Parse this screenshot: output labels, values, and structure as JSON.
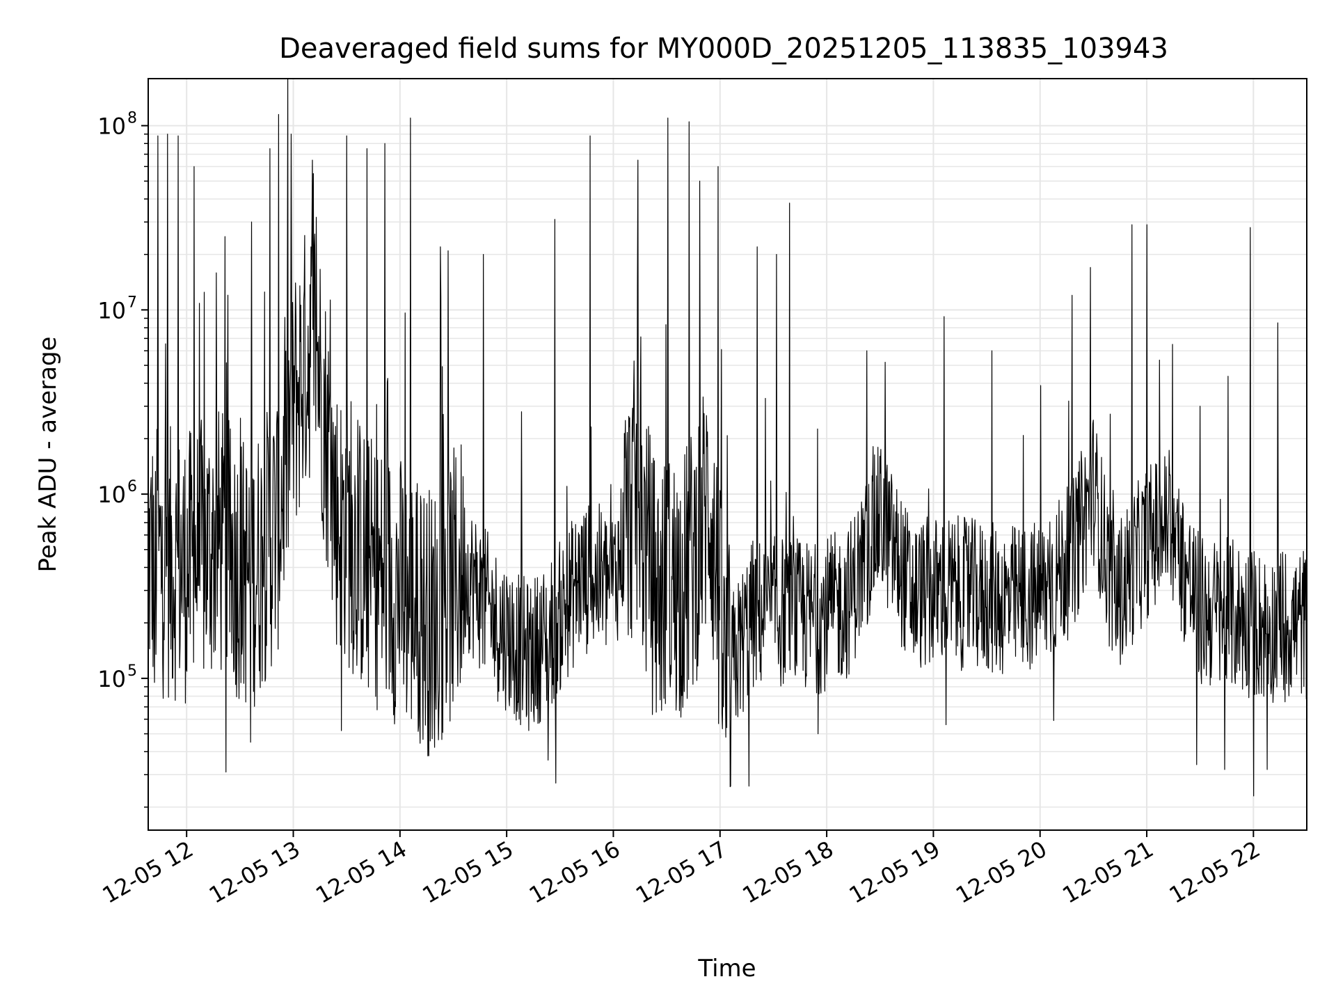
{
  "chart_data": {
    "type": "line",
    "title": "Deaveraged field sums for MY000D_20251205_113835_103943",
    "xlabel": "Time",
    "ylabel": "Peak ADU - average",
    "yscale": "log",
    "ylim": [
      15000,
      180000000
    ],
    "xlim_hours": [
      11.64,
      22.5
    ],
    "grid": "on (major and minor)",
    "line_color": "#000000",
    "grid_color": "#e6e6e6",
    "x_ticks": [
      {
        "hour": 12,
        "label": "12-05 12"
      },
      {
        "hour": 13,
        "label": "12-05 13"
      },
      {
        "hour": 14,
        "label": "12-05 14"
      },
      {
        "hour": 15,
        "label": "12-05 15"
      },
      {
        "hour": 16,
        "label": "12-05 16"
      },
      {
        "hour": 17,
        "label": "12-05 17"
      },
      {
        "hour": 18,
        "label": "12-05 18"
      },
      {
        "hour": 19,
        "label": "12-05 19"
      },
      {
        "hour": 20,
        "label": "12-05 20"
      },
      {
        "hour": 21,
        "label": "12-05 21"
      },
      {
        "hour": 22,
        "label": "12-05 22"
      }
    ],
    "y_ticks": [
      {
        "value": 100000,
        "base": "10",
        "exp": "5"
      },
      {
        "value": 1000000,
        "base": "10",
        "exp": "6"
      },
      {
        "value": 10000000,
        "base": "10",
        "exp": "7"
      },
      {
        "value": 100000000,
        "base": "10",
        "exp": "8"
      }
    ],
    "series": [
      {
        "envelope_hours": [
          11.64,
          12.0,
          12.3,
          12.6,
          12.85,
          13.0,
          13.2,
          13.4,
          13.7,
          14.0,
          14.3,
          14.6,
          14.9,
          15.2,
          15.4,
          15.7,
          16.0,
          16.2,
          16.4,
          16.7,
          16.9,
          17.05,
          17.3,
          17.6,
          17.9,
          18.2,
          18.5,
          18.8,
          19.1,
          19.4,
          19.7,
          20.0,
          20.3,
          20.5,
          20.7,
          21.0,
          21.2,
          21.5,
          21.8,
          22.1,
          22.5
        ],
        "envelope_median": [
          450000,
          400000,
          550000,
          350000,
          700000,
          3000000,
          8000000,
          800000,
          400000,
          300000,
          200000,
          400000,
          200000,
          130000,
          170000,
          350000,
          330000,
          1000000,
          280000,
          350000,
          1000000,
          90000,
          220000,
          230000,
          210000,
          260000,
          750000,
          280000,
          300000,
          280000,
          260000,
          280000,
          450000,
          1100000,
          260000,
          550000,
          700000,
          230000,
          220000,
          190000,
          200000
        ],
        "peaks": [
          {
            "hour": 11.73,
            "value": 88000000
          },
          {
            "hour": 11.82,
            "value": 90000000
          },
          {
            "hour": 11.92,
            "value": 88000000
          },
          {
            "hour": 12.07,
            "value": 60000000
          },
          {
            "hour": 12.36,
            "value": 25000000
          },
          {
            "hour": 12.61,
            "value": 30000000
          },
          {
            "hour": 12.78,
            "value": 75000000
          },
          {
            "hour": 12.86,
            "value": 115000000
          },
          {
            "hour": 12.98,
            "value": 90000000
          },
          {
            "hour": 13.18,
            "value": 65000000
          },
          {
            "hour": 13.5,
            "value": 88000000
          },
          {
            "hour": 13.69,
            "value": 75000000
          },
          {
            "hour": 13.86,
            "value": 80000000
          },
          {
            "hour": 14.1,
            "value": 110000000
          },
          {
            "hour": 14.38,
            "value": 22000000
          },
          {
            "hour": 14.78,
            "value": 20000000
          },
          {
            "hour": 15.14,
            "value": 2800000
          },
          {
            "hour": 15.45,
            "value": 31000000
          },
          {
            "hour": 15.78,
            "value": 88000000
          },
          {
            "hour": 16.23,
            "value": 65000000
          },
          {
            "hour": 16.51,
            "value": 110000000
          },
          {
            "hour": 16.71,
            "value": 105000000
          },
          {
            "hour": 16.98,
            "value": 60000000
          },
          {
            "hour": 17.35,
            "value": 22000000
          },
          {
            "hour": 17.65,
            "value": 38000000
          },
          {
            "hour": 17.53,
            "value": 20000000
          },
          {
            "hour": 18.55,
            "value": 5200000
          },
          {
            "hour": 19.1,
            "value": 9200000
          },
          {
            "hour": 19.55,
            "value": 6000000
          },
          {
            "hour": 20.3,
            "value": 12000000
          },
          {
            "hour": 20.47,
            "value": 17000000
          },
          {
            "hour": 20.86,
            "value": 29000000
          },
          {
            "hour": 21.0,
            "value": 29000000
          },
          {
            "hour": 21.24,
            "value": 6500000
          },
          {
            "hour": 21.5,
            "value": 3000000
          },
          {
            "hour": 21.97,
            "value": 28000000
          },
          {
            "hour": 22.23,
            "value": 8500000
          }
        ],
        "troughs": [
          {
            "hour": 11.7,
            "value": 95000
          },
          {
            "hour": 12.37,
            "value": 31000
          },
          {
            "hour": 12.6,
            "value": 45000
          },
          {
            "hour": 13.45,
            "value": 52000
          },
          {
            "hour": 14.3,
            "value": 47000
          },
          {
            "hour": 15.39,
            "value": 36000
          },
          {
            "hour": 15.46,
            "value": 27000
          },
          {
            "hour": 17.1,
            "value": 26000
          },
          {
            "hour": 17.27,
            "value": 26000
          },
          {
            "hour": 17.92,
            "value": 50000
          },
          {
            "hour": 19.12,
            "value": 56000
          },
          {
            "hour": 20.13,
            "value": 59000
          },
          {
            "hour": 21.47,
            "value": 34000
          },
          {
            "hour": 21.73,
            "value": 32000
          },
          {
            "hour": 22.0,
            "value": 23000
          },
          {
            "hour": 22.13,
            "value": 32000
          }
        ]
      }
    ]
  }
}
